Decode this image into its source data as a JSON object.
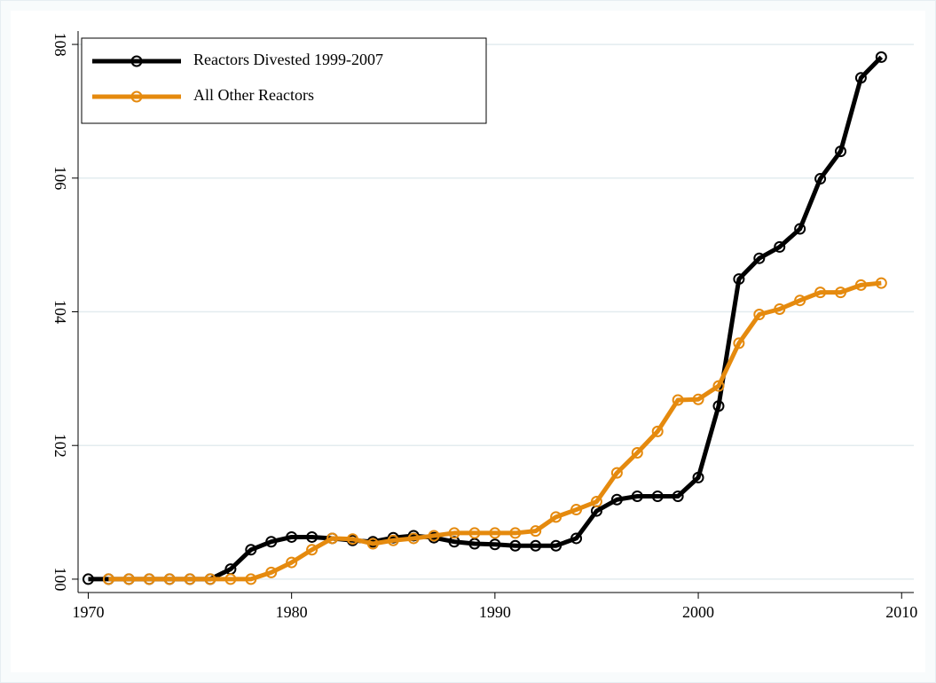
{
  "chart_data": {
    "type": "line",
    "x": [
      1970,
      1971,
      1972,
      1973,
      1974,
      1975,
      1976,
      1977,
      1978,
      1979,
      1980,
      1981,
      1982,
      1983,
      1984,
      1985,
      1986,
      1987,
      1988,
      1989,
      1990,
      1991,
      1992,
      1993,
      1994,
      1995,
      1996,
      1997,
      1998,
      1999,
      2000,
      2001,
      2002,
      2003,
      2004,
      2005,
      2006,
      2007,
      2008,
      2009
    ],
    "series": [
      {
        "name": "Reactors Divested 1999-2007",
        "color": "#000000",
        "values": [
          100,
          100,
          100,
          100,
          100,
          100,
          100,
          100.15,
          100.44,
          100.56,
          100.63,
          100.63,
          100.61,
          100.58,
          100.56,
          100.62,
          100.65,
          100.62,
          100.56,
          100.53,
          100.52,
          100.5,
          100.5,
          100.5,
          100.61,
          101.02,
          101.19,
          101.24,
          101.24,
          101.24,
          101.52,
          102.59,
          104.49,
          104.8,
          104.97,
          105.24,
          105.99,
          106.4,
          107.5,
          107.81
        ]
      },
      {
        "name": "All Other Reactors",
        "color": "#e58a0e",
        "values": [
          null,
          100,
          100,
          100,
          100,
          100,
          100,
          100,
          100,
          100.1,
          100.25,
          100.44,
          100.61,
          100.6,
          100.53,
          100.58,
          100.61,
          100.65,
          100.69,
          100.69,
          100.69,
          100.69,
          100.72,
          100.93,
          101.04,
          101.16,
          101.59,
          101.89,
          102.21,
          102.68,
          102.69,
          102.89,
          103.53,
          103.96,
          104.04,
          104.17,
          104.29,
          104.29,
          104.4,
          104.43
        ]
      }
    ],
    "xlim": [
      1969.5,
      2010.6
    ],
    "ylim": [
      99.8,
      108.2
    ],
    "xticks": [
      1970,
      1980,
      1990,
      2000,
      2010
    ],
    "yticks": [
      100,
      102,
      104,
      106,
      108
    ],
    "grid": true,
    "legend": "top-left"
  }
}
